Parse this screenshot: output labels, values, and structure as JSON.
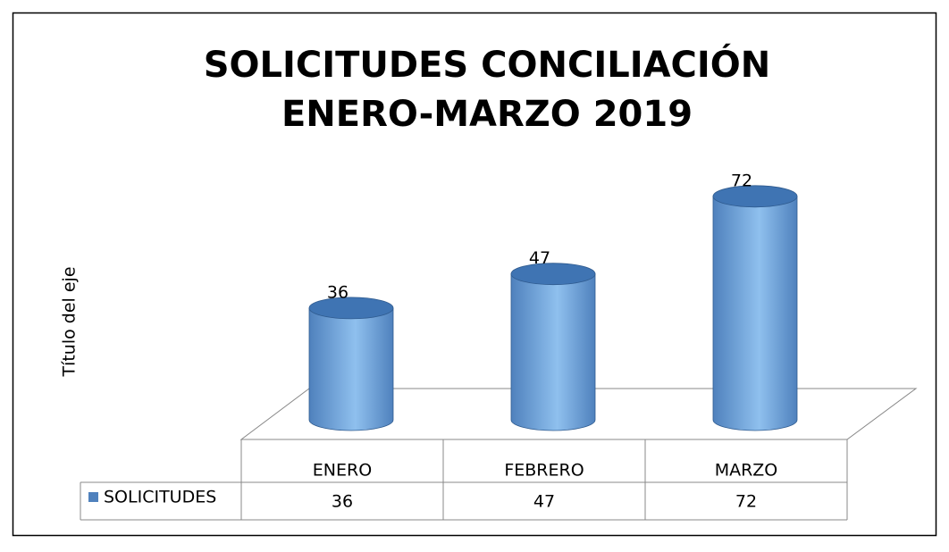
{
  "chart_data": {
    "type": "bar3d-cylinder",
    "title": [
      "SOLICITUDES CONCILIACIÓN",
      "ENERO-MARZO 2019"
    ],
    "y_axis_label": "Título del eje",
    "categories": [
      "ENERO",
      "FEBRERO",
      "MARZO"
    ],
    "series": [
      {
        "name": "SOLICITUDES",
        "color": "#4f81bd",
        "values": [
          36,
          47,
          72
        ]
      }
    ],
    "ylim": [
      0,
      80
    ],
    "data_table": true
  }
}
